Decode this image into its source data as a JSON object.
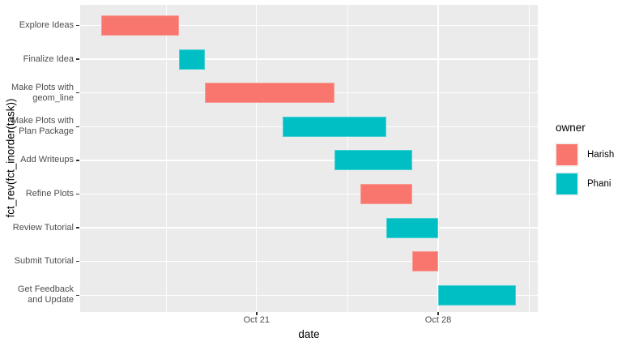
{
  "figure": {
    "xlabel": "date",
    "ylabel": "fct_rev(fct_inorder(task))"
  },
  "legend": {
    "title": "owner",
    "entries": [
      {
        "label": "Harish",
        "color": "#F8766D"
      },
      {
        "label": "Phani",
        "color": "#00BFC4"
      }
    ]
  },
  "chart_data": {
    "type": "bar",
    "subtype": "gantt",
    "title": "",
    "xlabel": "date",
    "ylabel": "fct_rev(fct_inorder(task))",
    "legend_title": "owner",
    "legend_position": "right",
    "grid": true,
    "x_unit": "day of October",
    "x_domain": [
      14.2,
      31.84
    ],
    "x_ticks": [
      {
        "value": 21,
        "label": "Oct 21"
      },
      {
        "value": 28,
        "label": "Oct 28"
      }
    ],
    "x_minor_ticks": [
      17.5,
      24.5,
      31.5
    ],
    "tasks": [
      {
        "label": "Explore Ideas",
        "owner": "Harish",
        "start": "Oct 15",
        "end": "Oct 18",
        "start_day": 15,
        "end_day": 18
      },
      {
        "label": "Finalize Idea",
        "owner": "Phani",
        "start": "Oct 18",
        "end": "Oct 19",
        "start_day": 18,
        "end_day": 19
      },
      {
        "label": "Make Plots with\ngeom_line",
        "owner": "Harish",
        "start": "Oct 19",
        "end": "Oct 24",
        "start_day": 19,
        "end_day": 24
      },
      {
        "label": "Make Plots with\nPlan Package",
        "owner": "Phani",
        "start": "Oct 22",
        "end": "Oct 26",
        "start_day": 22,
        "end_day": 26
      },
      {
        "label": "Add Writeups",
        "owner": "Phani",
        "start": "Oct 24",
        "end": "Oct 27",
        "start_day": 24,
        "end_day": 27
      },
      {
        "label": "Refine Plots",
        "owner": "Harish",
        "start": "Oct 25",
        "end": "Oct 27",
        "start_day": 25,
        "end_day": 27
      },
      {
        "label": "Review Tutorial",
        "owner": "Phani",
        "start": "Oct 26",
        "end": "Oct 28",
        "start_day": 26,
        "end_day": 28
      },
      {
        "label": "Submit Tutorial",
        "owner": "Harish",
        "start": "Oct 27",
        "end": "Oct 28",
        "start_day": 27,
        "end_day": 28
      },
      {
        "label": "Get Feedback\nand Update",
        "owner": "Phani",
        "start": "Oct 28",
        "end": "Oct 31",
        "start_day": 28,
        "end_day": 31
      }
    ],
    "colors": {
      "Harish": "#F8766D",
      "Phani": "#00BFC4"
    },
    "panel_bg": "#EBEBEB",
    "grid_color": "#FFFFFF",
    "axis_text_color": "#4D4D4D"
  }
}
